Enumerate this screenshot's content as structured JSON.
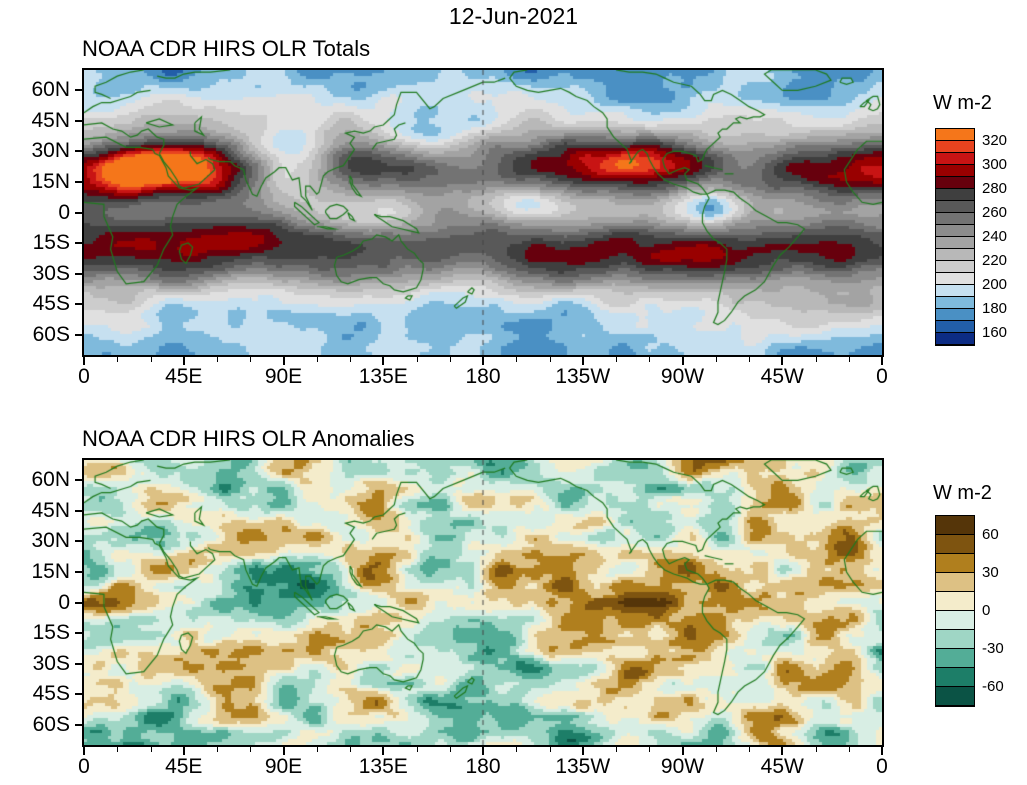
{
  "header": {
    "date": "12-Jun-2021"
  },
  "axes": {
    "lat_ticks": [
      {
        "label": "60N",
        "lat": 60
      },
      {
        "label": "45N",
        "lat": 45
      },
      {
        "label": "30N",
        "lat": 30
      },
      {
        "label": "15N",
        "lat": 15
      },
      {
        "label": "0",
        "lat": 0
      },
      {
        "label": "15S",
        "lat": -15
      },
      {
        "label": "30S",
        "lat": -30
      },
      {
        "label": "45S",
        "lat": -45
      },
      {
        "label": "60S",
        "lat": -60
      }
    ],
    "lon_ticks": [
      {
        "label": "0",
        "lon": 0
      },
      {
        "label": "45E",
        "lon": 45
      },
      {
        "label": "90E",
        "lon": 90
      },
      {
        "label": "135E",
        "lon": 135
      },
      {
        "label": "180",
        "lon": 180
      },
      {
        "label": "135W",
        "lon": 225
      },
      {
        "label": "90W",
        "lon": 270
      },
      {
        "label": "45W",
        "lon": 315
      },
      {
        "label": "0",
        "lon": 360
      }
    ]
  },
  "panels": {
    "totals": {
      "title": "NOAA CDR HIRS OLR Totals",
      "colorbar": {
        "unit": "W m-2",
        "tick_labels": [
          "320",
          "300",
          "280",
          "260",
          "240",
          "220",
          "200",
          "180",
          "160"
        ],
        "levels_ascending": [
          160,
          170,
          180,
          190,
          200,
          210,
          220,
          230,
          240,
          250,
          260,
          270,
          280,
          290,
          300,
          310,
          320
        ],
        "colors_top_to_bottom": [
          "#F5761A",
          "#E8431F",
          "#C81414",
          "#990000",
          "#67000D",
          "#3F3F3F",
          "#595959",
          "#737373",
          "#8C8C8C",
          "#A3A3A3",
          "#B8B8B8",
          "#CCCCCC",
          "#E0E0E0",
          "#C6E0F0",
          "#7FBADC",
          "#4A90C4",
          "#225EA8",
          "#0C2C84"
        ]
      }
    },
    "anomalies": {
      "title": "NOAA CDR HIRS OLR Anomalies",
      "colorbar": {
        "unit": "W m-2",
        "tick_labels": [
          "60",
          "30",
          "0",
          "-30",
          "-60"
        ],
        "levels_ascending": [
          -60,
          -45,
          -30,
          -15,
          0,
          15,
          30,
          45,
          60
        ],
        "colors_top_to_bottom": [
          "#553509",
          "#7E5410",
          "#B07F1E",
          "#DDC184",
          "#F4ECCB",
          "#D8EEE4",
          "#9FD6C5",
          "#53AD97",
          "#1D7E68",
          "#0B5345"
        ]
      }
    }
  },
  "chart_data": [
    {
      "type": "heatmap",
      "title": "NOAA CDR HIRS OLR Totals",
      "subtitle_date": "12-Jun-2021",
      "units": "W m-2",
      "x_tick_labels": [
        "0",
        "45E",
        "90E",
        "135E",
        "180",
        "135W",
        "90W",
        "45W",
        "0"
      ],
      "y_tick_labels": [
        "60N",
        "45N",
        "30N",
        "15N",
        "0",
        "15S",
        "30S",
        "45S",
        "60S"
      ],
      "lon_range_deg": [
        0,
        360
      ],
      "lat_range_deg": [
        -70,
        70
      ],
      "colorbar_labeled_levels": [
        160,
        180,
        200,
        220,
        240,
        260,
        280,
        300,
        320
      ],
      "contour_interval": 10,
      "palette_top_to_bottom": [
        "#F5761A",
        "#E8431F",
        "#C81414",
        "#990000",
        "#67000D",
        "#3F3F3F",
        "#595959",
        "#737373",
        "#8C8C8C",
        "#A3A3A3",
        "#B8B8B8",
        "#CCCCCC",
        "#E0E0E0",
        "#C6E0F0",
        "#7FBADC",
        "#4A90C4",
        "#225EA8",
        "#0C2C84"
      ],
      "overlay": "green coastlines, dashed meridian at 180",
      "legend_position": "right"
    },
    {
      "type": "heatmap",
      "title": "NOAA CDR HIRS OLR Anomalies",
      "subtitle_date": "12-Jun-2021",
      "units": "W m-2",
      "x_tick_labels": [
        "0",
        "45E",
        "90E",
        "135E",
        "180",
        "135W",
        "90W",
        "45W",
        "0"
      ],
      "y_tick_labels": [
        "60N",
        "45N",
        "30N",
        "15N",
        "0",
        "15S",
        "30S",
        "45S",
        "60S"
      ],
      "lon_range_deg": [
        0,
        360
      ],
      "lat_range_deg": [
        -70,
        70
      ],
      "colorbar_labeled_levels": [
        -60,
        -30,
        0,
        30,
        60
      ],
      "contour_interval": 15,
      "palette_top_to_bottom": [
        "#553509",
        "#7E5410",
        "#B07F1E",
        "#DDC184",
        "#F4ECCB",
        "#D8EEE4",
        "#9FD6C5",
        "#53AD97",
        "#1D7E68",
        "#0B5345"
      ],
      "overlay": "green coastlines, dashed meridian at 180",
      "legend_position": "right"
    }
  ]
}
